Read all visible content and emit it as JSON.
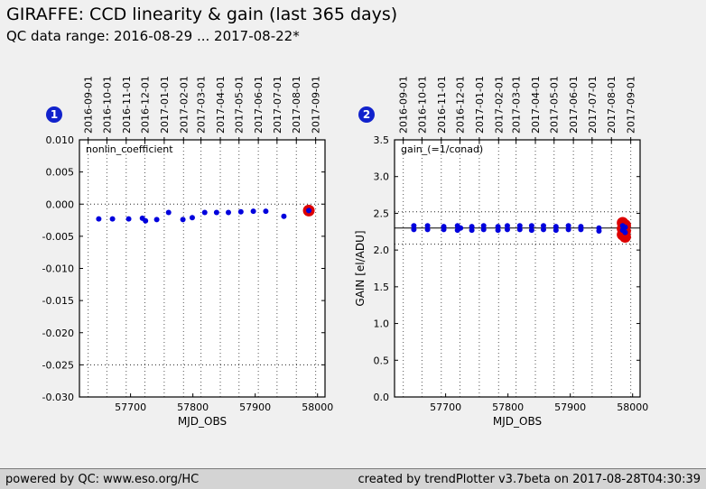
{
  "header": {
    "title": "GIRAFFE: CCD linearity & gain (last 365 days)",
    "subtitle": "QC data range: 2016-08-29 ... 2017-08-22*"
  },
  "footer": {
    "left": "powered by QC: www.eso.org/HC",
    "right": "created by trendPlotter v3.7beta on 2017-08-28T04:30:39"
  },
  "colors": {
    "background": "#f0f0f0",
    "plot_background": "#ffffff",
    "point_blue": "#0000dd",
    "highlight_red": "#dd0000",
    "badge_blue": "#1122cc",
    "footer_bg": "#d4d4d4"
  },
  "chart_data": [
    {
      "type": "scatter",
      "index_label": "1",
      "inner_label": "nonlin_coefficient",
      "xlabel": "MJD_OBS",
      "ylabel": "",
      "xlim": [
        57618,
        58012
      ],
      "ylim": [
        -0.03,
        0.01
      ],
      "grid": "dotted-vertical-months",
      "xticks": [
        {
          "v": 57700,
          "label": "57700"
        },
        {
          "v": 57800,
          "label": "57800"
        },
        {
          "v": 57900,
          "label": "57900"
        },
        {
          "v": 58000,
          "label": "58000"
        }
      ],
      "yticks": [
        {
          "v": 0.01,
          "label": "0.010"
        },
        {
          "v": 0.005,
          "label": "0.005"
        },
        {
          "v": 0.0,
          "label": "0.000"
        },
        {
          "v": -0.005,
          "label": "-0.005"
        },
        {
          "v": -0.01,
          "label": "-0.010"
        },
        {
          "v": -0.015,
          "label": "-0.015"
        },
        {
          "v": -0.02,
          "label": "-0.020"
        },
        {
          "v": -0.025,
          "label": "-0.025"
        },
        {
          "v": -0.03,
          "label": "-0.030"
        }
      ],
      "top_axis_dates": [
        {
          "mjd": 57632,
          "label": "2016-09-01"
        },
        {
          "mjd": 57662,
          "label": "2016-10-01"
        },
        {
          "mjd": 57693,
          "label": "2016-11-01"
        },
        {
          "mjd": 57723,
          "label": "2016-12-01"
        },
        {
          "mjd": 57754,
          "label": "2017-01-01"
        },
        {
          "mjd": 57785,
          "label": "2017-02-01"
        },
        {
          "mjd": 57813,
          "label": "2017-03-01"
        },
        {
          "mjd": 57844,
          "label": "2017-04-01"
        },
        {
          "mjd": 57874,
          "label": "2017-05-01"
        },
        {
          "mjd": 57905,
          "label": "2017-06-01"
        },
        {
          "mjd": 57935,
          "label": "2017-07-01"
        },
        {
          "mjd": 57966,
          "label": "2017-08-01"
        },
        {
          "mjd": 57997,
          "label": "2017-09-01"
        }
      ],
      "threshold_lines": [
        0.0,
        -0.025
      ],
      "mean_lines": [],
      "points": [
        [
          57649,
          -0.0023
        ],
        [
          57671,
          -0.0023
        ],
        [
          57697,
          -0.0023
        ],
        [
          57719,
          -0.0022
        ],
        [
          57724,
          -0.0026
        ],
        [
          57742,
          -0.0024
        ],
        [
          57761,
          -0.0013
        ],
        [
          57784,
          -0.0024
        ],
        [
          57799,
          -0.0021
        ],
        [
          57819,
          -0.0013
        ],
        [
          57838,
          -0.0013
        ],
        [
          57857,
          -0.0013
        ],
        [
          57877,
          -0.0012
        ],
        [
          57897,
          -0.0011
        ],
        [
          57917,
          -0.0011
        ],
        [
          57946,
          -0.0019
        ],
        [
          57986,
          -0.001
        ]
      ],
      "highlight_points": [
        [
          57986,
          -0.001
        ]
      ]
    },
    {
      "type": "scatter",
      "index_label": "2",
      "inner_label": "gain_(=1/conad)",
      "xlabel": "MJD_OBS",
      "ylabel": "GAIN [el/ADU]",
      "xlim": [
        57618,
        58012
      ],
      "ylim": [
        0.0,
        3.5
      ],
      "grid": "dotted-vertical-months",
      "xticks": [
        {
          "v": 57700,
          "label": "57700"
        },
        {
          "v": 57800,
          "label": "57800"
        },
        {
          "v": 57900,
          "label": "57900"
        },
        {
          "v": 58000,
          "label": "58000"
        }
      ],
      "yticks": [
        {
          "v": 3.5,
          "label": "3.5"
        },
        {
          "v": 3.0,
          "label": "3.0"
        },
        {
          "v": 2.5,
          "label": "2.5"
        },
        {
          "v": 2.0,
          "label": "2.0"
        },
        {
          "v": 1.5,
          "label": "1.5"
        },
        {
          "v": 1.0,
          "label": "1.0"
        },
        {
          "v": 0.5,
          "label": "0.5"
        },
        {
          "v": 0.0,
          "label": "0.0"
        }
      ],
      "top_axis_dates": [
        {
          "mjd": 57632,
          "label": "2016-09-01"
        },
        {
          "mjd": 57662,
          "label": "2016-10-01"
        },
        {
          "mjd": 57693,
          "label": "2016-11-01"
        },
        {
          "mjd": 57723,
          "label": "2016-12-01"
        },
        {
          "mjd": 57754,
          "label": "2017-01-01"
        },
        {
          "mjd": 57785,
          "label": "2017-02-01"
        },
        {
          "mjd": 57813,
          "label": "2017-03-01"
        },
        {
          "mjd": 57844,
          "label": "2017-04-01"
        },
        {
          "mjd": 57874,
          "label": "2017-05-01"
        },
        {
          "mjd": 57905,
          "label": "2017-06-01"
        },
        {
          "mjd": 57935,
          "label": "2017-07-01"
        },
        {
          "mjd": 57966,
          "label": "2017-08-01"
        },
        {
          "mjd": 57997,
          "label": "2017-09-01"
        }
      ],
      "threshold_lines": [
        2.52,
        2.08
      ],
      "mean_lines": [
        2.3
      ],
      "points": [
        [
          57649,
          2.33
        ],
        [
          57649,
          2.28
        ],
        [
          57671,
          2.33
        ],
        [
          57671,
          2.28
        ],
        [
          57697,
          2.32
        ],
        [
          57697,
          2.28
        ],
        [
          57719,
          2.33
        ],
        [
          57719,
          2.27
        ],
        [
          57724,
          2.3
        ],
        [
          57742,
          2.32
        ],
        [
          57742,
          2.27
        ],
        [
          57761,
          2.33
        ],
        [
          57761,
          2.28
        ],
        [
          57784,
          2.32
        ],
        [
          57784,
          2.27
        ],
        [
          57799,
          2.33
        ],
        [
          57799,
          2.28
        ],
        [
          57819,
          2.33
        ],
        [
          57819,
          2.28
        ],
        [
          57838,
          2.33
        ],
        [
          57838,
          2.27
        ],
        [
          57857,
          2.33
        ],
        [
          57857,
          2.28
        ],
        [
          57877,
          2.32
        ],
        [
          57877,
          2.27
        ],
        [
          57897,
          2.33
        ],
        [
          57897,
          2.28
        ],
        [
          57917,
          2.32
        ],
        [
          57917,
          2.28
        ],
        [
          57946,
          2.3
        ],
        [
          57946,
          2.26
        ],
        [
          57984,
          2.33
        ],
        [
          57984,
          2.27
        ],
        [
          57988,
          2.31
        ],
        [
          57988,
          2.24
        ]
      ],
      "highlight_points": [
        [
          57984,
          2.37
        ],
        [
          57984,
          2.29
        ],
        [
          57984,
          2.21
        ],
        [
          57988,
          2.34
        ],
        [
          57988,
          2.26
        ],
        [
          57988,
          2.18
        ]
      ]
    }
  ]
}
